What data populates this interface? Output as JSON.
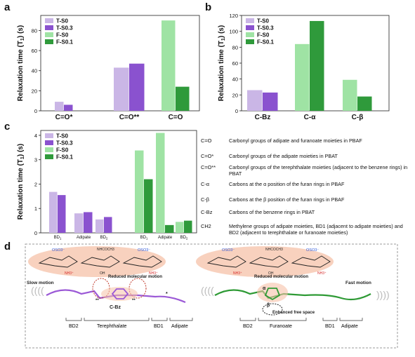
{
  "panels": {
    "a": "a",
    "b": "b",
    "c": "c",
    "d": "d"
  },
  "colors": {
    "T-S0": "#cab6e6",
    "T-S0.3": "#8a52cf",
    "F-S0": "#9fe3a4",
    "F-S0.1": "#2f9a3b",
    "purple_chain": "#9b59d6",
    "green_chain": "#2e9a35",
    "highlight": "#f6c2a8"
  },
  "chart_data": [
    {
      "id": "a",
      "type": "bar",
      "ylabel": "Relaxation time (T1) (s)",
      "ylim": [
        0,
        95
      ],
      "yticks": [
        0,
        20,
        40,
        60,
        80
      ],
      "categories": [
        "C=O*",
        "C=O**",
        "C=O"
      ],
      "legend": [
        "T-S0",
        "T-S0.3",
        "F-S0",
        "F-S0.1"
      ],
      "legend_position": "top-left",
      "series": [
        {
          "name": "T-S0",
          "values": [
            9,
            43,
            null
          ]
        },
        {
          "name": "T-S0.3",
          "values": [
            6,
            47,
            null
          ]
        },
        {
          "name": "F-S0",
          "values": [
            null,
            null,
            90
          ]
        },
        {
          "name": "F-S0.1",
          "values": [
            null,
            null,
            24
          ]
        }
      ]
    },
    {
      "id": "b",
      "type": "bar",
      "ylabel": "Relaxation time (T1) (s)",
      "ylim": [
        0,
        120
      ],
      "yticks": [
        0,
        20,
        40,
        60,
        80,
        100,
        120
      ],
      "categories": [
        "C-Bz",
        "C-α",
        "C-β"
      ],
      "legend": [
        "T-S0",
        "T-S0.3",
        "F-S0",
        "F-S0.1"
      ],
      "legend_position": "top-left",
      "series": [
        {
          "name": "T-S0",
          "values": [
            26,
            null,
            null
          ]
        },
        {
          "name": "T-S0.3",
          "values": [
            23,
            null,
            null
          ]
        },
        {
          "name": "F-S0",
          "values": [
            null,
            84,
            39
          ]
        },
        {
          "name": "F-S0.1",
          "values": [
            null,
            113,
            18
          ]
        }
      ]
    },
    {
      "id": "c",
      "type": "bar",
      "ylabel": "Relaxation time (T1) (s)",
      "ylim": [
        0,
        4.2
      ],
      "yticks": [
        0,
        1,
        2,
        3,
        4
      ],
      "categories": [
        "BD1",
        "Adipate",
        "BD2",
        "BD1",
        "Adipate",
        "BD2"
      ],
      "group_label": "CH2",
      "legend": [
        "T-S0",
        "T-S0.3",
        "F-S0",
        "F-S0.1"
      ],
      "legend_position": "top-left",
      "series": [
        {
          "name": "T-S0",
          "values": [
            1.68,
            0.8,
            0.55,
            null,
            null,
            null
          ]
        },
        {
          "name": "T-S0.3",
          "values": [
            1.55,
            0.85,
            0.65,
            null,
            null,
            null
          ]
        },
        {
          "name": "F-S0",
          "values": [
            null,
            null,
            null,
            3.38,
            4.1,
            0.45
          ]
        },
        {
          "name": "F-S0.1",
          "values": [
            null,
            null,
            null,
            2.2,
            0.32,
            0.5
          ]
        }
      ]
    }
  ],
  "definitions": [
    {
      "symbol": "C=O",
      "text": "Carbonyl groups of adipate and furanoate moieties in PBAF"
    },
    {
      "symbol": "C=O*",
      "text": "Carbonyl groups of the adipate moieties in PBAT"
    },
    {
      "symbol": "C=O**",
      "text": "Carbonyl groups of the terephthalate moieties (adjacent to the benzene rings) in PBAT"
    },
    {
      "symbol": "C-α",
      "text": "Carbons at the α position of the furan rings in PBAF"
    },
    {
      "symbol": "C-β",
      "text": "Carbons at the β position of the furan rings in PBAF"
    },
    {
      "symbol": "C-Bz",
      "text": "Carbons of the benzene rings in PBAT"
    },
    {
      "symbol": "CH2",
      "text": "Methylene groups of adipate moieties, BD1 (adjacent to adipate moieties) and BD2 (adjacent to terephthalate or furanoate moieties)"
    }
  ],
  "scheme": {
    "left": {
      "slow_motion": "Slow motion",
      "reduced": "Reduced molecular motion",
      "cbz": "C-Bz",
      "segments": [
        "BD2",
        "Terephthalate",
        "BD1",
        "Adipate"
      ],
      "star_single": "*",
      "star_double": "**"
    },
    "right": {
      "fast_motion": "Fast motion",
      "reduced": "Reduced molecular motion",
      "alpha": "α",
      "beta": "β",
      "enhanced": "Enhanced free space",
      "segments": [
        "BD2",
        "Furanoate",
        "BD1",
        "Adipate"
      ]
    },
    "sugar": {
      "oso3": "OSO3⁻",
      "nh3": "NH3⁺",
      "oh": "OH",
      "nhcoch3": "NHCOCH3",
      "o": "O"
    }
  }
}
